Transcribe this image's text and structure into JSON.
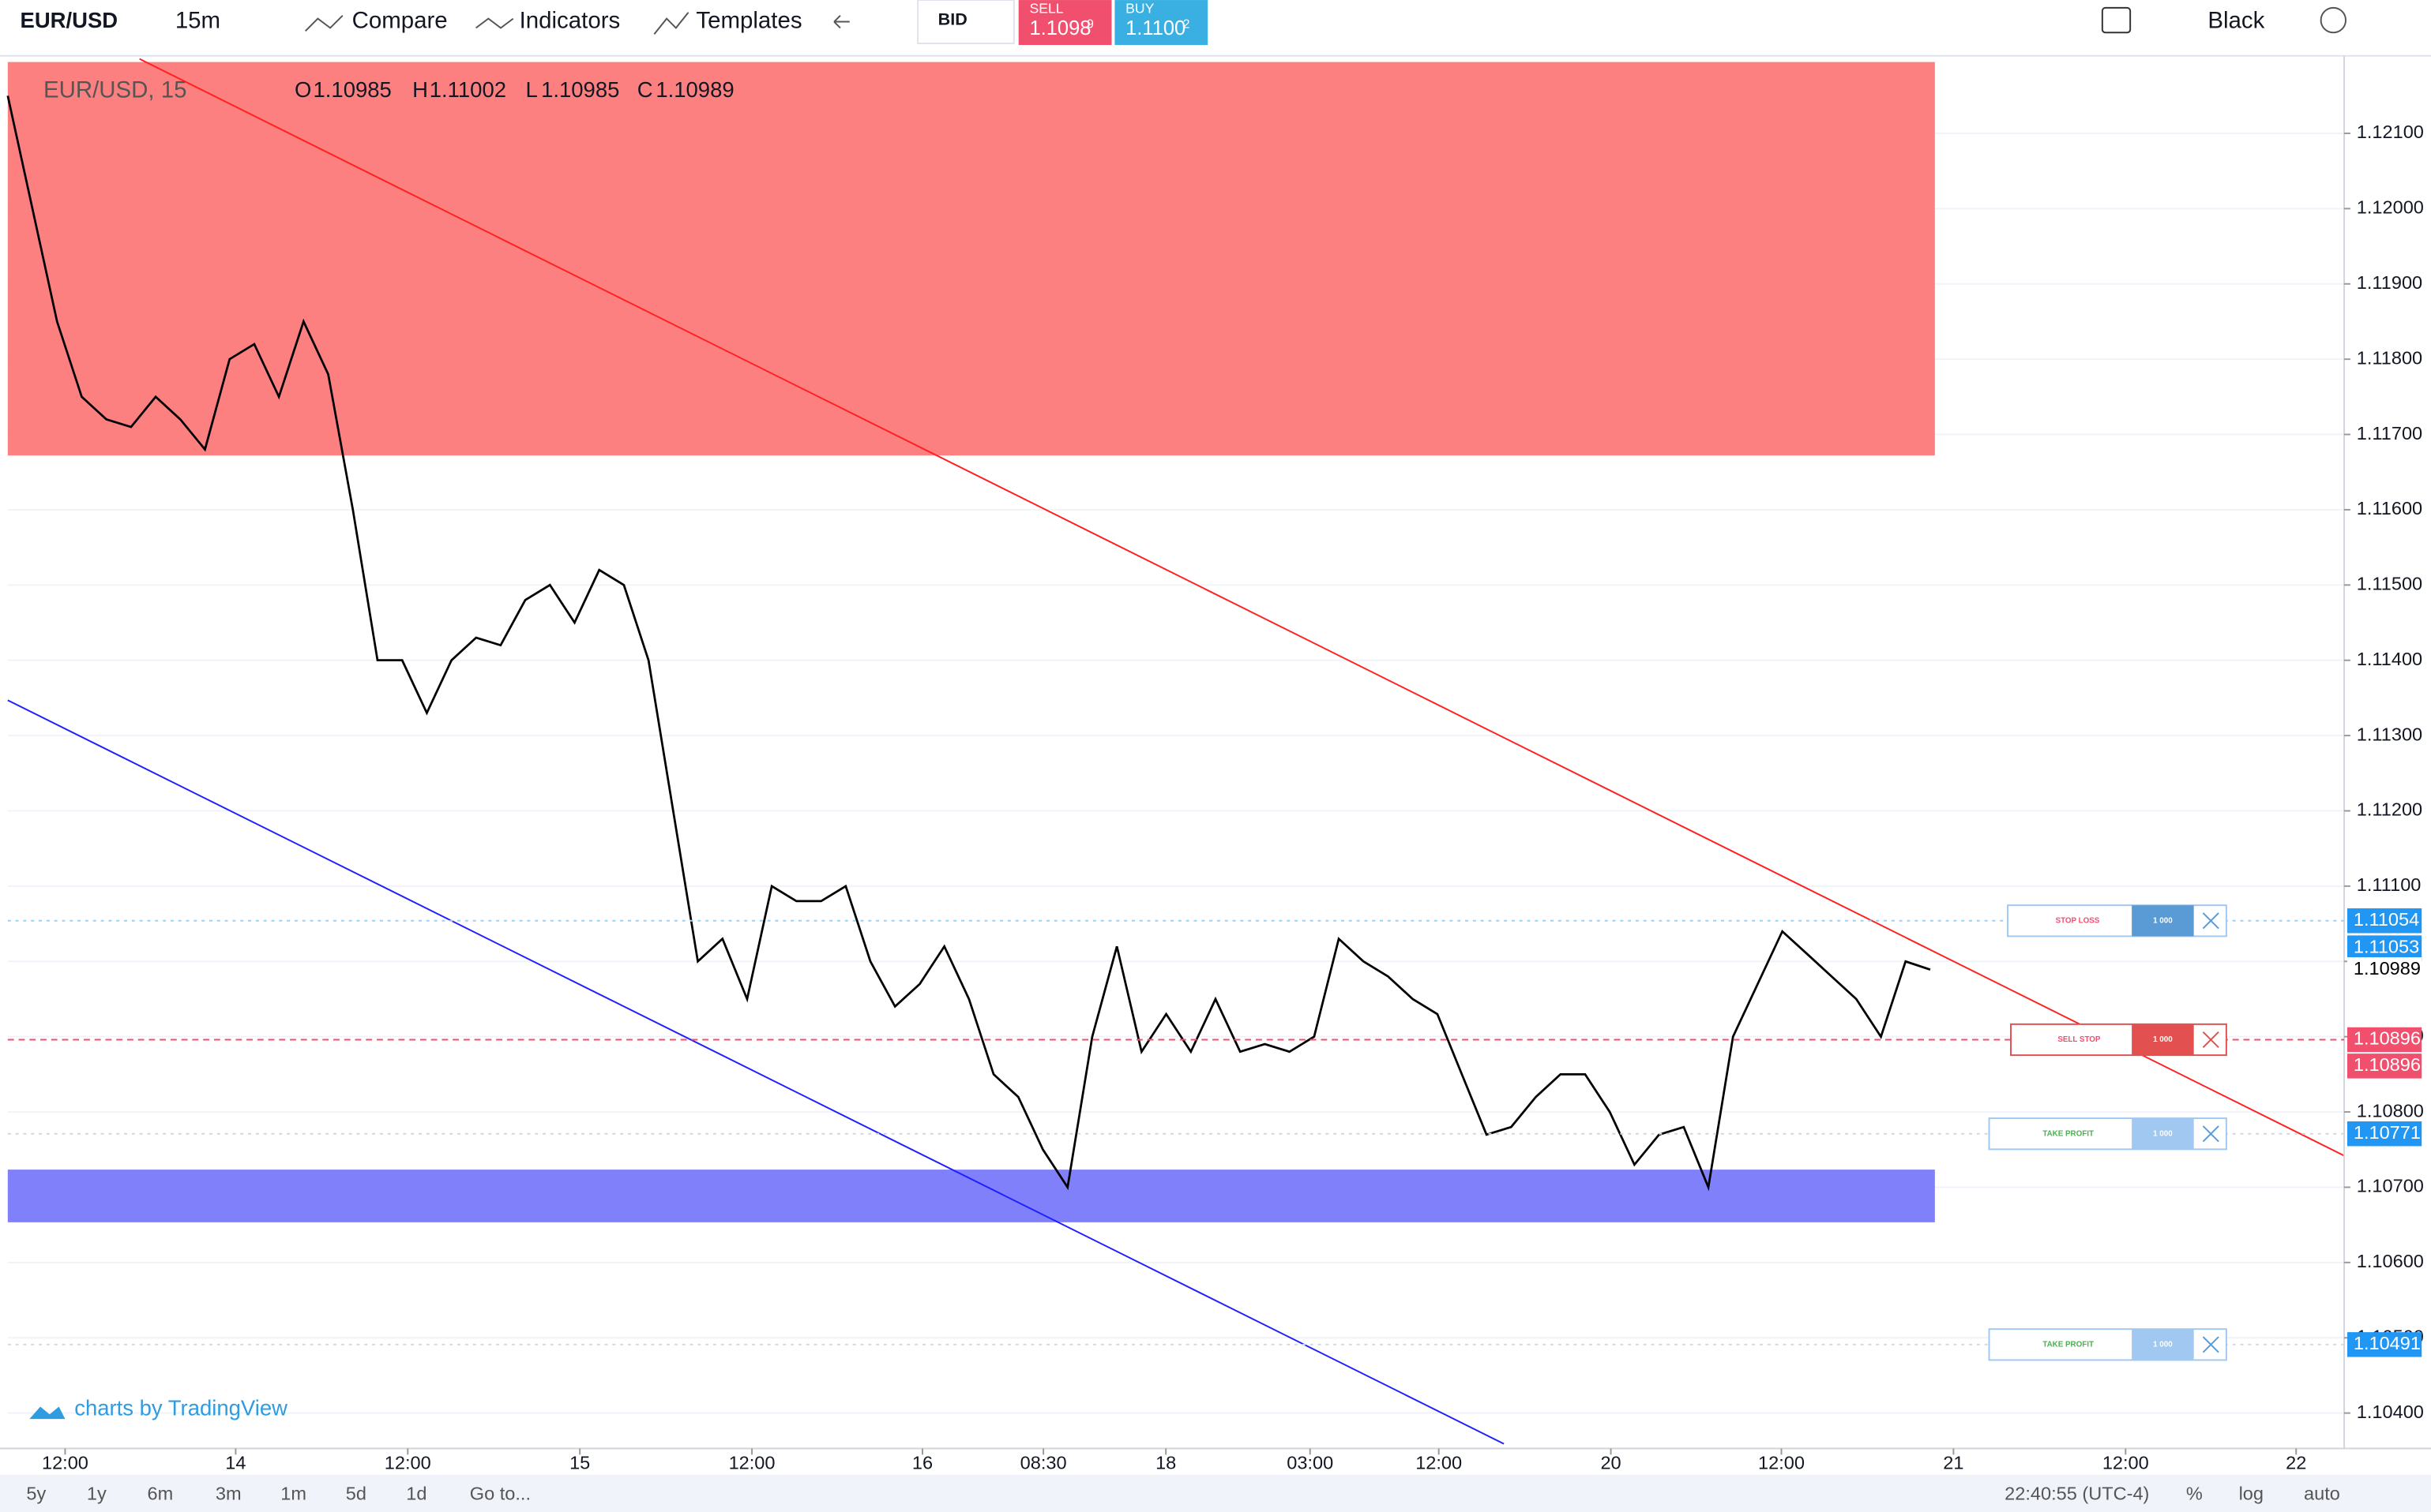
{
  "toolbar": {
    "symbol": "EUR/USD",
    "interval": "15m",
    "compare": "Compare",
    "indicators": "Indicators",
    "templates": "Templates",
    "price_source": "BID",
    "sell": {
      "label": "SELL",
      "price": "1.1098",
      "price_sup": "9"
    },
    "buy": {
      "label": "BUY",
      "price": "1.1100",
      "price_sup": "2"
    },
    "theme": "Black"
  },
  "legend": {
    "symbol": "EUR/USD, 15",
    "open_label": "O",
    "open": "1.10985",
    "high_label": "H",
    "high": "1.11002",
    "low_label": "L",
    "low": "1.10985",
    "close_label": "C",
    "close": "1.10989"
  },
  "chart_data": {
    "type": "line",
    "color": "#000000",
    "values": [
      1.1215,
      1.12,
      1.1185,
      1.1175,
      1.1172,
      1.1171,
      1.1175,
      1.1172,
      1.1168,
      1.118,
      1.1182,
      1.1175,
      1.1185,
      1.1178,
      1.116,
      1.114,
      1.114,
      1.1133,
      1.114,
      1.1143,
      1.1142,
      1.1148,
      1.115,
      1.1145,
      1.1152,
      1.115,
      1.114,
      1.112,
      1.11,
      1.1103,
      1.1095,
      1.111,
      1.1108,
      1.1108,
      1.111,
      1.11,
      1.1094,
      1.1097,
      1.1102,
      1.1095,
      1.1085,
      1.1082,
      1.1075,
      1.107,
      1.109,
      1.1102,
      1.1088,
      1.1093,
      1.1088,
      1.1095,
      1.1088,
      1.1089,
      1.1088,
      1.109,
      1.1103,
      1.11,
      1.1098,
      1.1095,
      1.1093,
      1.1085,
      1.1077,
      1.1078,
      1.1082,
      1.1085,
      1.1085,
      1.108,
      1.1073,
      1.1077,
      1.1078,
      1.107,
      1.109,
      1.1097,
      1.1104,
      1.1101,
      1.1098,
      1.1095,
      1.109,
      1.11,
      1.10989
    ],
    "ylim": [
      1.10353,
      1.12203
    ],
    "yticks": [
      {
        "value": 1.104,
        "label": "1.10400"
      },
      {
        "value": 1.105,
        "label": "1.10500"
      },
      {
        "value": 1.106,
        "label": "1.10600"
      },
      {
        "value": 1.107,
        "label": "1.10700"
      },
      {
        "value": 1.108,
        "label": "1.10800"
      },
      {
        "value": 1.109,
        "label": "1.10900"
      },
      {
        "value": 1.11,
        "label": "1.11000"
      },
      {
        "value": 1.111,
        "label": "1.11100"
      },
      {
        "value": 1.112,
        "label": "1.11200"
      },
      {
        "value": 1.113,
        "label": "1.11300"
      },
      {
        "value": 1.114,
        "label": "1.11400"
      },
      {
        "value": 1.115,
        "label": "1.11500"
      },
      {
        "value": 1.116,
        "label": "1.11600"
      },
      {
        "value": 1.117,
        "label": "1.11700"
      },
      {
        "value": 1.118,
        "label": "1.11800"
      },
      {
        "value": 1.119,
        "label": "1.11900"
      },
      {
        "value": 1.12,
        "label": "1.12000"
      },
      {
        "value": 1.121,
        "label": "1.12100"
      }
    ],
    "x_labels": [
      "12:00",
      "14",
      "12:00",
      "15",
      "12:00",
      "16",
      "08:30",
      "18",
      "03:00",
      "12:00",
      "20",
      "12:00",
      "21",
      "12:00",
      "22"
    ],
    "price_labels": [
      1.11054,
      1.11053,
      1.10989,
      1.10896,
      1.10896,
      1.10771,
      1.10491
    ],
    "grid": true
  },
  "orders": [
    {
      "label": "STOP LOSS",
      "qty": "1 000"
    },
    {
      "label": "SELL STOP",
      "qty": "1 000"
    },
    {
      "label": "TAKE PROFIT",
      "qty": "1 000"
    },
    {
      "label": "TAKE PROFIT",
      "qty": "1 000"
    }
  ],
  "watermark": "charts by TradingView",
  "bottom_bar": {
    "ranges": [
      "5y",
      "1y",
      "6m",
      "3m",
      "1m",
      "5d",
      "1d"
    ],
    "goto": "Go to...",
    "clock": "22:40:55 (UTC-4)",
    "percent": "%",
    "log": "log",
    "auto": "auto"
  }
}
